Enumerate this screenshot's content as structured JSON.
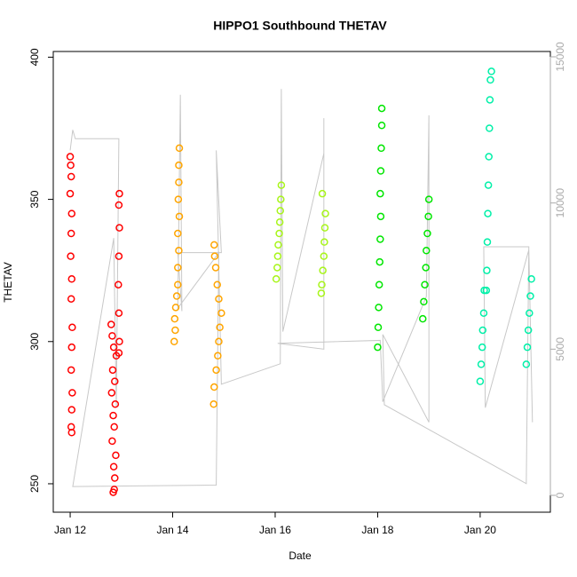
{
  "chart_data": {
    "type": "scatter",
    "title": "HIPPO1 Southbound THETAV",
    "xlabel": "Date",
    "ylabel": "THETAV",
    "xlim": [
      11.67,
      21.37
    ],
    "ylim": [
      240,
      402
    ],
    "y2lim": [
      -577,
      15182
    ],
    "xticks": [
      {
        "value": 12,
        "label": "Jan 12"
      },
      {
        "value": 14,
        "label": "Jan 14"
      },
      {
        "value": 16,
        "label": "Jan 16"
      },
      {
        "value": 18,
        "label": "Jan 18"
      },
      {
        "value": 20,
        "label": "Jan 20"
      }
    ],
    "yticks": [
      250,
      300,
      350,
      400
    ],
    "y2ticks": [
      0,
      5000,
      10000,
      15000
    ],
    "y2color": "#aaaaaa",
    "series": [
      {
        "type": "line",
        "axis": "y2",
        "color": "#c8c8c8",
        "x": [
          12.0,
          12.05,
          12.1,
          12.95,
          12.9,
          12.85,
          12.05,
          14.85,
          14.9,
          14.1,
          14.15,
          14.18,
          14.1,
          14.95,
          14.85,
          14.95,
          16.1,
          16.12,
          16.15,
          16.95,
          16.95,
          16.95,
          16.05,
          18.05,
          18.1,
          18.95,
          19.0,
          19.0,
          18.1,
          18.13,
          20.9,
          20.95,
          20.07,
          20.1,
          20.95,
          21.02
        ],
        "values": [
          11800,
          12500,
          12200,
          12200,
          3000,
          8800,
          300,
          350,
          8300,
          6400,
          13700,
          6300,
          8300,
          8300,
          11800,
          3800,
          4500,
          13900,
          5600,
          11700,
          12900,
          5000,
          5200,
          5300,
          3200,
          6800,
          13000,
          2500,
          5500,
          3100,
          400,
          8500,
          8500,
          3000,
          8400,
          2500
        ]
      },
      {
        "color": "#ff0000",
        "x": [
          12.0,
          12.01,
          12.02,
          12.0,
          12.03,
          12.02,
          12.01,
          12.03,
          12.02,
          12.04,
          12.03,
          12.02,
          12.04,
          12.03,
          12.02,
          12.03
        ],
        "values": [
          365,
          362,
          358,
          352,
          345,
          338,
          330,
          322,
          315,
          305,
          298,
          290,
          282,
          276,
          270,
          268
        ]
      },
      {
        "color": "#ff0000",
        "x": [
          12.8,
          12.82,
          12.85,
          12.9,
          12.83,
          12.87,
          12.81,
          12.88,
          12.84,
          12.86,
          12.82,
          12.89,
          12.85,
          12.87,
          12.86,
          12.84,
          12.95,
          12.96,
          12.95,
          12.94,
          12.95,
          12.96,
          12.95,
          12.96
        ],
        "values": [
          306,
          302,
          298,
          295,
          290,
          286,
          282,
          278,
          274,
          270,
          265,
          260,
          256,
          252,
          248,
          247,
          296,
          300,
          310,
          320,
          330,
          340,
          348,
          352
        ]
      },
      {
        "color": "#ffa500",
        "x": [
          14.03,
          14.05,
          14.04,
          14.06,
          14.08,
          14.1,
          14.1,
          14.12,
          14.1,
          14.13,
          14.11,
          14.12,
          14.12,
          14.13
        ],
        "values": [
          300,
          304,
          308,
          312,
          316,
          320,
          326,
          332,
          338,
          344,
          350,
          356,
          362,
          368
        ]
      },
      {
        "color": "#ffa500",
        "x": [
          14.8,
          14.81,
          14.85,
          14.88,
          14.9,
          14.92,
          14.95,
          14.9,
          14.87,
          14.84,
          14.82,
          14.81
        ],
        "values": [
          278,
          284,
          290,
          295,
          300,
          305,
          310,
          315,
          320,
          326,
          330,
          334
        ]
      },
      {
        "color": "#a8f51a",
        "x": [
          16.02,
          16.04,
          16.05,
          16.06,
          16.08,
          16.09,
          16.1,
          16.11,
          16.12
        ],
        "values": [
          322,
          326,
          330,
          334,
          338,
          342,
          346,
          350,
          355
        ]
      },
      {
        "color": "#a8f51a",
        "x": [
          16.9,
          16.91,
          16.93,
          16.95,
          16.96,
          16.97,
          16.98,
          16.92
        ],
        "values": [
          317,
          320,
          325,
          330,
          335,
          340,
          345,
          352
        ]
      },
      {
        "color": "#00e600",
        "x": [
          18.0,
          18.01,
          18.02,
          18.03,
          18.04,
          18.05,
          18.06,
          18.05,
          18.06,
          18.07,
          18.08,
          18.08
        ],
        "values": [
          298,
          305,
          312,
          320,
          328,
          336,
          344,
          352,
          360,
          368,
          376,
          382
        ]
      },
      {
        "color": "#00e600",
        "x": [
          18.88,
          18.9,
          18.92,
          18.94,
          18.95,
          18.97,
          18.99,
          19.0
        ],
        "values": [
          308,
          314,
          320,
          326,
          332,
          338,
          344,
          350
        ]
      },
      {
        "color": "#00f0a8",
        "x": [
          20.0,
          20.02,
          20.04,
          20.05,
          20.07,
          20.08
        ],
        "values": [
          286,
          292,
          298,
          304,
          310,
          318
        ]
      },
      {
        "color": "#00f0a8",
        "x": [
          20.12,
          20.13,
          20.14,
          20.15,
          20.16,
          20.17,
          20.18,
          20.19,
          20.2,
          20.22
        ],
        "values": [
          318,
          325,
          335,
          345,
          355,
          365,
          375,
          385,
          392,
          395
        ]
      },
      {
        "color": "#00f0a8",
        "x": [
          20.9,
          20.92,
          20.94,
          20.96,
          20.98,
          21.0
        ],
        "values": [
          292,
          298,
          304,
          310,
          316,
          322
        ]
      }
    ]
  }
}
